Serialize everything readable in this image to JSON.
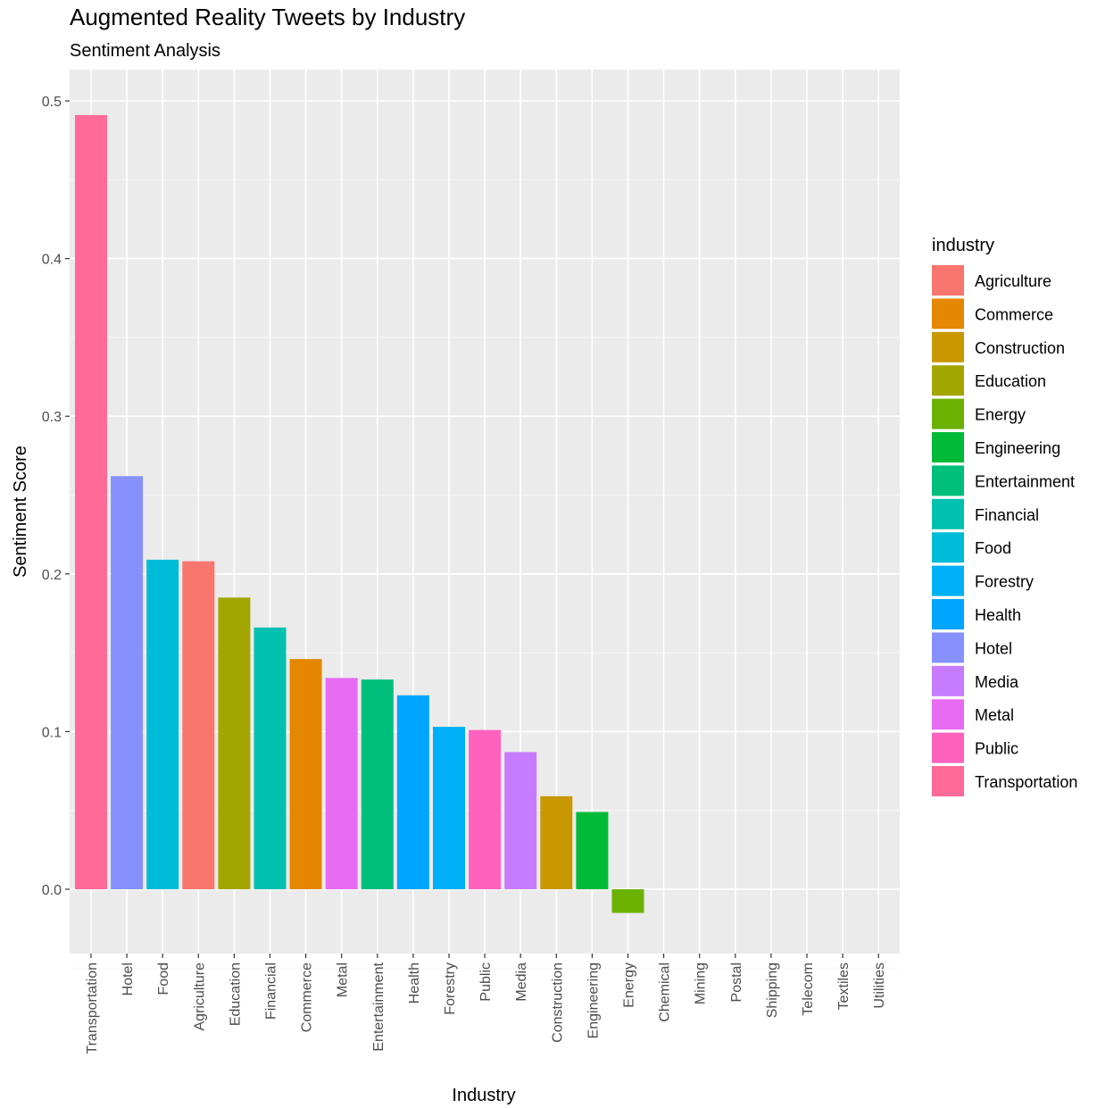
{
  "chart_data": {
    "type": "bar",
    "title": "Augmented Reality Tweets by Industry",
    "subtitle": "Sentiment Analysis",
    "xlabel": "Industry",
    "ylabel": "Sentiment Score",
    "ylim": [
      -0.04,
      0.51
    ],
    "yticks": [
      0.0,
      0.1,
      0.2,
      0.3,
      0.4,
      0.5
    ],
    "ytick_labels": [
      "0.0",
      "0.1",
      "0.2",
      "0.3",
      "0.4",
      "0.5"
    ],
    "grid": true,
    "legend_position": "right",
    "legend_title": "industry",
    "categories": [
      "Transportation",
      "Hotel",
      "Food",
      "Agriculture",
      "Education",
      "Financial",
      "Commerce",
      "Metal",
      "Entertainment",
      "Health",
      "Forestry",
      "Public",
      "Media",
      "Construction",
      "Engineering",
      "Energy",
      "Chemical",
      "Mining",
      "Postal",
      "Shipping",
      "Telecom",
      "Textiles",
      "Utilities"
    ],
    "values": [
      0.491,
      0.262,
      0.209,
      0.208,
      0.185,
      0.166,
      0.146,
      0.134,
      0.133,
      0.123,
      0.103,
      0.101,
      0.087,
      0.059,
      0.049,
      -0.015,
      0,
      0,
      0,
      0,
      0,
      0,
      0
    ],
    "colors": {
      "Agriculture": "#F8766D",
      "Commerce": "#E58700",
      "Construction": "#C99800",
      "Education": "#A3A500",
      "Energy": "#6BB100",
      "Engineering": "#00BA38",
      "Entertainment": "#00BF7D",
      "Financial": "#00C0AF",
      "Food": "#00BCD8",
      "Forestry": "#00B0F6",
      "Health": "#00A5FF",
      "Hotel": "#8690FF",
      "Media": "#C77CFF",
      "Metal": "#E76BF3",
      "Public": "#FF62BC",
      "Transportation": "#FF6A98"
    },
    "legend": [
      "Agriculture",
      "Commerce",
      "Construction",
      "Education",
      "Energy",
      "Engineering",
      "Entertainment",
      "Financial",
      "Food",
      "Forestry",
      "Health",
      "Hotel",
      "Media",
      "Metal",
      "Public",
      "Transportation"
    ]
  }
}
